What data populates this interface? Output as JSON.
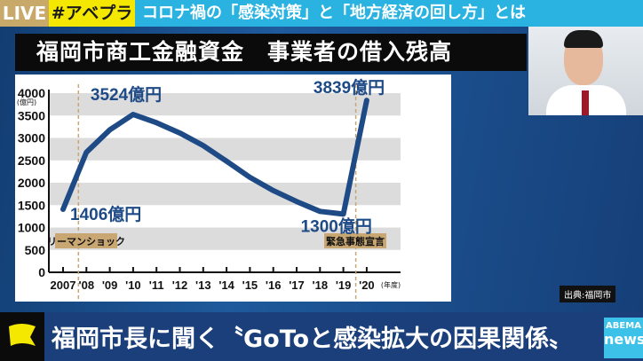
{
  "topbar": {
    "live": "LIVE",
    "hashtag": "#アベプラ",
    "topic": "コロナ禍の「感染対策」と「地方経済の回し方」とは"
  },
  "title": "福岡市商工金融資金　事業者の借入残高",
  "source": "出典:福岡市",
  "ticker": {
    "text": "福岡市長に聞く〝GoToと感染拡大の因果関係〟",
    "logo_top": "ABEMA",
    "logo_bottom": "news/"
  },
  "colors": {
    "line": "#1e4a86",
    "band": "#dcdcdc",
    "event_label": "#c8a772",
    "live": "#c8a96a",
    "hashtag": "#f5e800",
    "topic": "#2ab3e0"
  },
  "chart_data": {
    "type": "line",
    "title": "福岡市商工金融資金　事業者の借入残高",
    "ylabel": "(億円)",
    "xlabel": "(年度)",
    "ylim": [
      0,
      4000
    ],
    "yticks": [
      "0",
      "500",
      "1000",
      "1500",
      "2000",
      "2500",
      "3000",
      "3500",
      "4000"
    ],
    "categories": [
      "2007",
      "'08",
      "'09",
      "'10",
      "'11",
      "'12",
      "'13",
      "'14",
      "'15",
      "'16",
      "'17",
      "'18",
      "'19",
      "'20"
    ],
    "values": [
      1406,
      2680,
      3180,
      3524,
      3340,
      3110,
      2830,
      2480,
      2120,
      1825,
      1580,
      1360,
      1300,
      3839
    ],
    "data_labels": [
      {
        "index": 0,
        "text": "1406億円"
      },
      {
        "index": 3,
        "text": "3524億円"
      },
      {
        "index": 12,
        "text": "1300億円"
      },
      {
        "index": 13,
        "text": "3839億円"
      }
    ],
    "events": [
      {
        "at": "'08",
        "label": "リーマンショック"
      },
      {
        "at": "'19-'20",
        "label": "緊急事態宣言"
      }
    ],
    "grid": "alternating horizontal bands"
  }
}
